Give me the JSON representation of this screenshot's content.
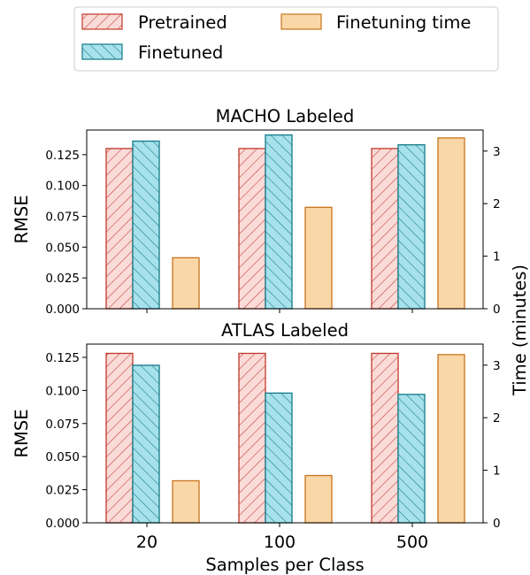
{
  "chart_data": [
    {
      "type": "bar",
      "title": "MACHO Labeled",
      "categories": [
        "20",
        "100",
        "500"
      ],
      "xlabel": "Samples per Class",
      "ylabel": "RMSE",
      "y2label": "Time (minutes)",
      "ylim": [
        0,
        0.145
      ],
      "y2lim": [
        0,
        3.4
      ],
      "yticks": [
        "0.000",
        "0.025",
        "0.050",
        "0.075",
        "0.100",
        "0.125"
      ],
      "y2ticks": [
        "0",
        "1",
        "2",
        "3"
      ],
      "series": [
        {
          "name": "Pretrained",
          "axis": "left",
          "values": [
            0.13,
            0.13,
            0.13
          ]
        },
        {
          "name": "Finetuned",
          "axis": "left",
          "values": [
            0.136,
            0.141,
            0.133
          ]
        },
        {
          "name": "Finetuning time",
          "axis": "right",
          "values": [
            0.97,
            1.93,
            3.25
          ]
        }
      ]
    },
    {
      "type": "bar",
      "title": "ATLAS Labeled",
      "categories": [
        "20",
        "100",
        "500"
      ],
      "xlabel": "Samples per Class",
      "ylabel": "RMSE",
      "y2label": "Time (minutes)",
      "ylim": [
        0,
        0.135
      ],
      "y2lim": [
        0,
        3.4
      ],
      "yticks": [
        "0.000",
        "0.025",
        "0.050",
        "0.075",
        "0.100",
        "0.125"
      ],
      "y2ticks": [
        "0",
        "1",
        "2",
        "3"
      ],
      "series": [
        {
          "name": "Pretrained",
          "axis": "left",
          "values": [
            0.128,
            0.128,
            0.128
          ]
        },
        {
          "name": "Finetuned",
          "axis": "left",
          "values": [
            0.119,
            0.098,
            0.097
          ]
        },
        {
          "name": "Finetuning time",
          "axis": "right",
          "values": [
            0.8,
            0.9,
            3.2
          ]
        }
      ]
    }
  ],
  "legend": {
    "items": [
      "Pretrained",
      "Finetuned",
      "Finetuning time"
    ],
    "placement": "top"
  },
  "shared_xlabel": "Samples per Class",
  "shared_y2label": "Time (minutes)",
  "colors": {
    "pretrained_fill": "#fadbd8",
    "pretrained_edge": "#c0392b",
    "finetuned_fill": "#a6e1ec",
    "finetuned_edge": "#117a86",
    "time_fill": "#fad7a7",
    "time_edge": "#c8741c"
  }
}
